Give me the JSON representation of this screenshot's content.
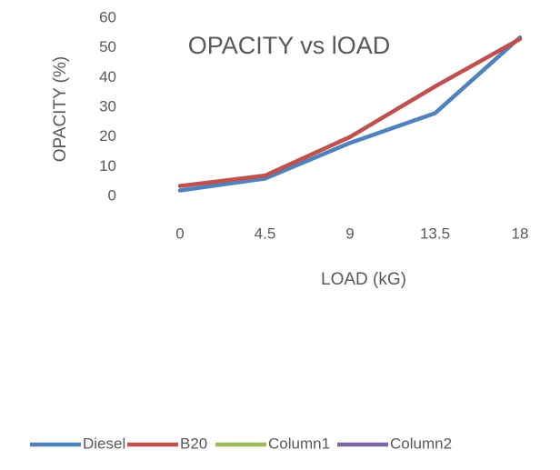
{
  "chart_data": {
    "type": "line",
    "title": "OPACITY  vs lOAD",
    "x_label": "LOAD (kG)",
    "y_label": "OPACITY (%)",
    "categories": [
      "0",
      "4.5",
      "9",
      "13.5",
      "18"
    ],
    "series": [
      {
        "name": "Diesel",
        "color": "#4f81bd",
        "values": [
          2,
          6,
          18,
          28,
          53.5
        ]
      },
      {
        "name": "B20",
        "color": "#c0504d",
        "values": [
          3.5,
          7,
          20,
          37,
          53
        ]
      },
      {
        "name": "Column1",
        "color": "#9bbb59",
        "values": [
          null,
          null,
          null,
          null,
          null
        ]
      },
      {
        "name": "Column2",
        "color": "#8064a2",
        "values": [
          null,
          null,
          null,
          null,
          null
        ]
      }
    ],
    "ylim": [
      0,
      60
    ],
    "yticks": [
      0,
      10,
      20,
      30,
      40,
      50,
      60
    ],
    "grid": false,
    "legend": "bottom"
  }
}
